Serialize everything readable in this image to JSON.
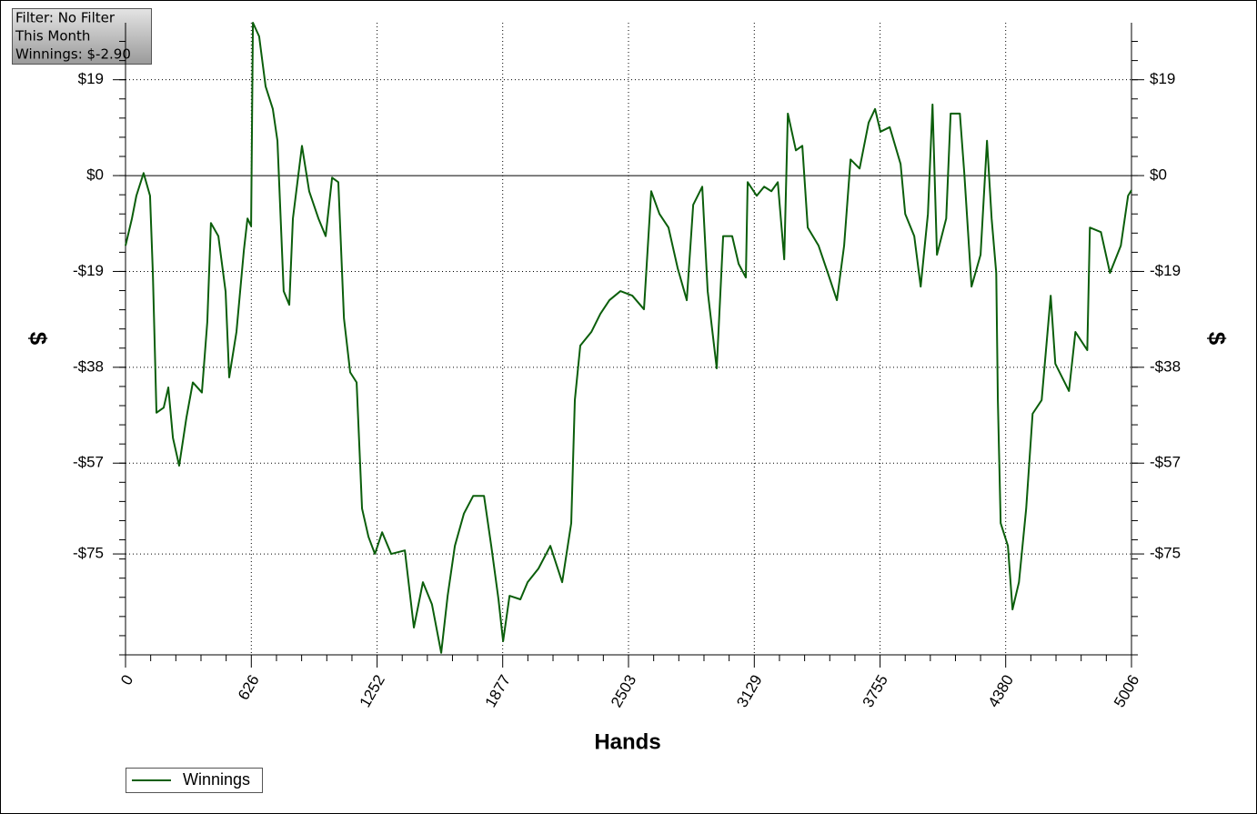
{
  "chart_data": {
    "type": "line",
    "xlabel": "Hands",
    "ylabel": "$",
    "annotations": [
      "Filter: No Filter",
      "This Month",
      "Winnings: $-2.90"
    ],
    "xlim": [
      0,
      5006
    ],
    "ylim": [
      -95,
      30.3
    ],
    "xticks": [
      0,
      626,
      1252,
      1877,
      2503,
      3129,
      3755,
      4380,
      5006
    ],
    "yticks": [
      {
        "value": 19,
        "label": "$19"
      },
      {
        "value": 0,
        "label": "$0"
      },
      {
        "value": -19,
        "label": "-$19"
      },
      {
        "value": -38,
        "label": "-$38"
      },
      {
        "value": -57,
        "label": "-$57"
      },
      {
        "value": -75,
        "label": "-$75"
      }
    ],
    "grid": true,
    "legend": "bottom-left",
    "x": [
      0,
      32,
      54,
      90,
      122,
      136,
      154,
      190,
      213,
      236,
      267,
      303,
      335,
      380,
      407,
      425,
      462,
      498,
      516,
      552,
      589,
      607,
      625,
      634,
      665,
      697,
      733,
      756,
      787,
      815,
      833,
      878,
      914,
      960,
      996,
      1028,
      1059,
      1087,
      1118,
      1150,
      1177,
      1209,
      1241,
      1277,
      1322,
      1390,
      1435,
      1480,
      1525,
      1571,
      1603,
      1639,
      1684,
      1730,
      1784,
      1820,
      1856,
      1879,
      1911,
      1965,
      2001,
      2055,
      2114,
      2173,
      2218,
      2236,
      2263,
      2318,
      2363,
      2408,
      2463,
      2522,
      2580,
      2616,
      2657,
      2702,
      2748,
      2793,
      2825,
      2870,
      2897,
      2942,
      2974,
      3019,
      3051,
      3087,
      3096,
      3141,
      3178,
      3214,
      3246,
      3278,
      3296,
      3336,
      3368,
      3395,
      3449,
      3495,
      3540,
      3576,
      3608,
      3653,
      3698,
      3730,
      3757,
      3803,
      3857,
      3880,
      3925,
      3957,
      3993,
      4016,
      4038,
      4084,
      4106,
      4152,
      4174,
      4210,
      4255,
      4287,
      4310,
      4333,
      4341,
      4355,
      4391,
      4414,
      4446,
      4482,
      4514,
      4559,
      4604,
      4627,
      4695,
      4727,
      4786,
      4799,
      4854,
      4899,
      4953,
      4989,
      5006
    ],
    "series": [
      {
        "name": "Winnings",
        "color": "#0b5e0b",
        "values": [
          -13.9,
          -8.5,
          -4,
          0.5,
          -4,
          -19.3,
          -47,
          -46,
          -42,
          -52,
          -57.5,
          -48,
          -41,
          -43,
          -29,
          -9.4,
          -12,
          -23,
          -40,
          -31,
          -14.8,
          -8.5,
          -10,
          30.3,
          27.6,
          17.7,
          13.2,
          6.9,
          -22.9,
          -25.6,
          -8.5,
          5.9,
          -3.1,
          -8.5,
          -12,
          -0.4,
          -1.3,
          -28.3,
          -39,
          -41,
          -66,
          -71.6,
          -75,
          -70.7,
          -75,
          -74.3,
          -89.6,
          -80.6,
          -85,
          -94.6,
          -83.3,
          -73.4,
          -67,
          -63.5,
          -63.5,
          -73.4,
          -84,
          -92.3,
          -83.3,
          -84,
          -80.6,
          -77.9,
          -73.4,
          -80.6,
          -68.9,
          -44.5,
          -33.7,
          -31,
          -27.4,
          -24.7,
          -22.9,
          -23.8,
          -26.5,
          -3.1,
          -7.6,
          -10.3,
          -18.4,
          -24.7,
          -5.8,
          -2.2,
          -22.9,
          -38.2,
          -12,
          -12,
          -17.5,
          -20.2,
          -1.3,
          -4,
          -2.2,
          -3.1,
          -1.3,
          -16.6,
          12.3,
          5,
          5.9,
          -10.3,
          -13.9,
          -19.3,
          -24.7,
          -13.9,
          3.2,
          1.4,
          10.5,
          13.2,
          8.7,
          9.6,
          2.3,
          -7.6,
          -12,
          -22,
          -7.6,
          14.1,
          -15.7,
          -8.5,
          12.3,
          12.3,
          0.5,
          -22,
          -15.7,
          6.9,
          -8.5,
          -19.3,
          -44.5,
          -68.9,
          -73.4,
          -86,
          -80.6,
          -66,
          -47.2,
          -44.5,
          -23.8,
          -37.3,
          -42.7,
          -31,
          -34.6,
          -10.3,
          -11.2,
          -19.3,
          -13.9,
          -4,
          -2.9
        ]
      }
    ]
  }
}
